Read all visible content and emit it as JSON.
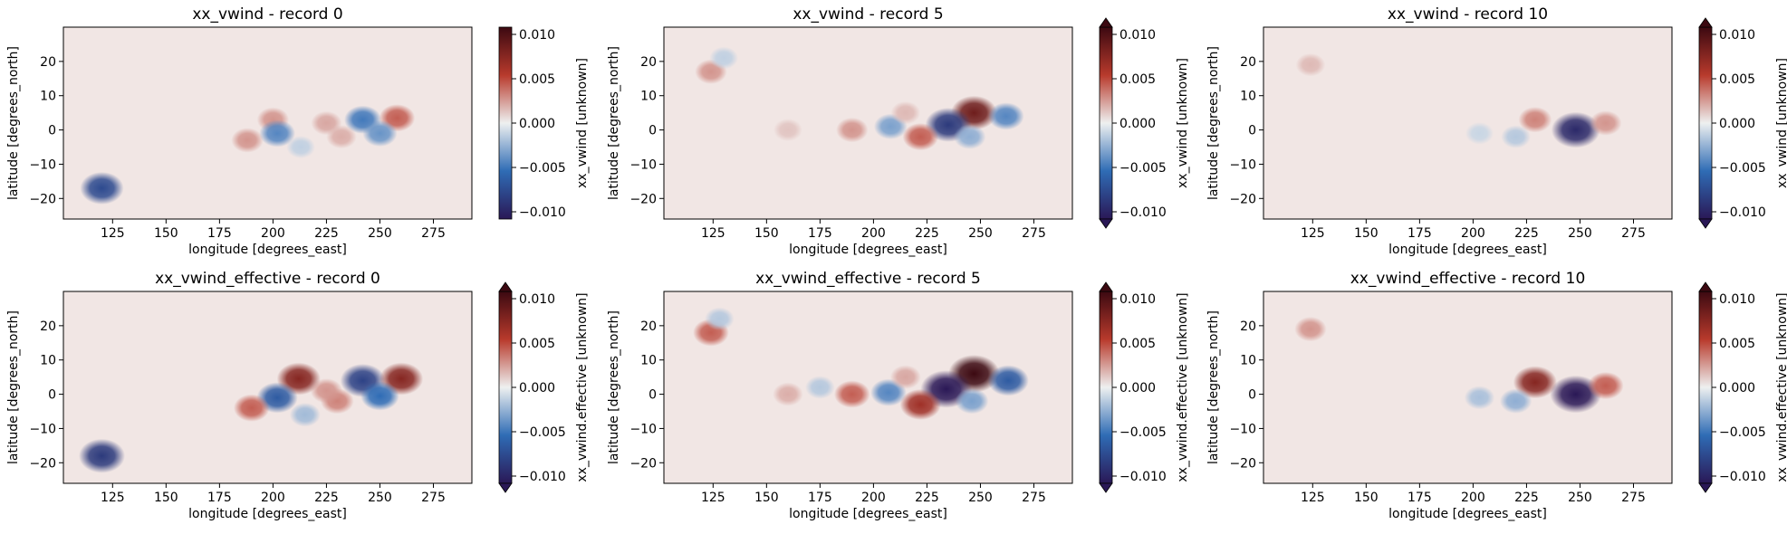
{
  "figure": {
    "layout": "2x3 grid of heatmap panels with colorbars"
  },
  "chart_data": [
    {
      "type": "heatmap",
      "title": "xx_vwind - record 0",
      "xlabel": "longitude [degrees_east]",
      "ylabel": "latitude [degrees_north]",
      "xlim": [
        102,
        293
      ],
      "ylim": [
        -26,
        30
      ],
      "xticks": [
        125,
        150,
        175,
        200,
        225,
        250,
        275
      ],
      "yticks": [
        -20,
        -10,
        0,
        10,
        20
      ],
      "colorbar": {
        "label": "xx_vwind [unknown]",
        "range": [
          -0.01,
          0.01
        ],
        "extend": "none",
        "ticks": [
          "0.010",
          "0.005",
          "0.000",
          "−0.005",
          "−0.010"
        ],
        "colors": [
          "#2a1856",
          "#2f6cb5",
          "#eef0f0",
          "#b83a2c",
          "#3c0911"
        ]
      },
      "features": [
        {
          "lon": 120,
          "lat": -17,
          "value": -0.007
        },
        {
          "lon": 200,
          "lat": 3,
          "value": 0.0025
        },
        {
          "lon": 188,
          "lat": -3,
          "value": 0.0025
        },
        {
          "lon": 202,
          "lat": -1,
          "value": -0.004
        },
        {
          "lon": 225,
          "lat": 2,
          "value": 0.002
        },
        {
          "lon": 242,
          "lat": 3,
          "value": -0.0045
        },
        {
          "lon": 258,
          "lat": 3.5,
          "value": 0.004
        },
        {
          "lon": 250,
          "lat": -1,
          "value": -0.0035
        },
        {
          "lon": 232,
          "lat": -2,
          "value": 0.0018
        },
        {
          "lon": 213,
          "lat": -5,
          "value": -0.0012
        }
      ]
    },
    {
      "type": "heatmap",
      "title": "xx_vwind - record 5",
      "xlabel": "longitude [degrees_east]",
      "ylabel": "latitude [degrees_north]",
      "xlim": [
        102,
        293
      ],
      "ylim": [
        -26,
        30
      ],
      "xticks": [
        125,
        150,
        175,
        200,
        225,
        250,
        275
      ],
      "yticks": [
        -20,
        -10,
        0,
        10,
        20
      ],
      "colorbar": {
        "label": "xx_vwind [unknown]",
        "range": [
          -0.01,
          0.01
        ],
        "extend": "both",
        "ticks": [
          "0.010",
          "0.005",
          "0.000",
          "−0.005",
          "−0.010"
        ],
        "colors": [
          "#2a1856",
          "#2f6cb5",
          "#eef0f0",
          "#b83a2c",
          "#3c0911"
        ]
      },
      "features": [
        {
          "lon": 124,
          "lat": 17,
          "value": 0.0025
        },
        {
          "lon": 130,
          "lat": 21,
          "value": -0.0012
        },
        {
          "lon": 247,
          "lat": 5,
          "value": 0.008
        },
        {
          "lon": 235,
          "lat": 1.5,
          "value": -0.008
        },
        {
          "lon": 262,
          "lat": 4,
          "value": -0.004
        },
        {
          "lon": 222,
          "lat": -2,
          "value": 0.004
        },
        {
          "lon": 208,
          "lat": 1,
          "value": -0.003
        },
        {
          "lon": 190,
          "lat": 0,
          "value": 0.0025
        },
        {
          "lon": 245,
          "lat": -2,
          "value": -0.0025
        },
        {
          "lon": 160,
          "lat": 0,
          "value": 0.0012
        },
        {
          "lon": 215,
          "lat": 5,
          "value": 0.0015
        }
      ]
    },
    {
      "type": "heatmap",
      "title": "xx_vwind - record 10",
      "xlabel": "longitude [degrees_east]",
      "ylabel": "latitude [degrees_north]",
      "xlim": [
        102,
        293
      ],
      "ylim": [
        -26,
        30
      ],
      "xticks": [
        125,
        150,
        175,
        200,
        225,
        250,
        275
      ],
      "yticks": [
        -20,
        -10,
        0,
        10,
        20
      ],
      "colorbar": {
        "label": "xx_vwind [unknown]",
        "range": [
          -0.01,
          0.01
        ],
        "extend": "both",
        "ticks": [
          "0.010",
          "0.005",
          "0.000",
          "−0.005",
          "−0.010"
        ],
        "colors": [
          "#2a1856",
          "#2f6cb5",
          "#eef0f0",
          "#b83a2c",
          "#3c0911"
        ]
      },
      "features": [
        {
          "lon": 124,
          "lat": 19,
          "value": 0.0015
        },
        {
          "lon": 229,
          "lat": 3,
          "value": 0.003
        },
        {
          "lon": 248,
          "lat": 0,
          "value": -0.009
        },
        {
          "lon": 262,
          "lat": 2,
          "value": 0.0025
        },
        {
          "lon": 220,
          "lat": -2,
          "value": -0.0015
        },
        {
          "lon": 203,
          "lat": -1,
          "value": -0.001
        }
      ]
    },
    {
      "type": "heatmap",
      "title": "xx_vwind_effective - record 0",
      "xlabel": "longitude [degrees_east]",
      "ylabel": "latitude [degrees_north]",
      "xlim": [
        102,
        293
      ],
      "ylim": [
        -26,
        30
      ],
      "xticks": [
        125,
        150,
        175,
        200,
        225,
        250,
        275
      ],
      "yticks": [
        -20,
        -10,
        0,
        10,
        20
      ],
      "colorbar": {
        "label": "xx_vwind.effective [unknown]",
        "range": [
          -0.01,
          0.01
        ],
        "extend": "both",
        "ticks": [
          "0.010",
          "0.005",
          "0.000",
          "−0.005",
          "−0.010"
        ],
        "colors": [
          "#2a1856",
          "#2f6cb5",
          "#eef0f0",
          "#b83a2c",
          "#3c0911"
        ]
      },
      "features": [
        {
          "lon": 120,
          "lat": -18,
          "value": -0.008
        },
        {
          "lon": 212,
          "lat": 4.5,
          "value": 0.007
        },
        {
          "lon": 202,
          "lat": -1,
          "value": -0.006
        },
        {
          "lon": 190,
          "lat": -4,
          "value": 0.004
        },
        {
          "lon": 242,
          "lat": 4,
          "value": -0.0075
        },
        {
          "lon": 260,
          "lat": 4.5,
          "value": 0.007
        },
        {
          "lon": 250,
          "lat": -0.5,
          "value": -0.005
        },
        {
          "lon": 230,
          "lat": -2,
          "value": 0.003
        },
        {
          "lon": 215,
          "lat": -6,
          "value": -0.002
        },
        {
          "lon": 225,
          "lat": 1,
          "value": 0.0025
        }
      ]
    },
    {
      "type": "heatmap",
      "title": "xx_vwind_effective - record 5",
      "xlabel": "longitude [degrees_east]",
      "ylabel": "latitude [degrees_north]",
      "xlim": [
        102,
        293
      ],
      "ylim": [
        -26,
        30
      ],
      "xticks": [
        125,
        150,
        175,
        200,
        225,
        250,
        275
      ],
      "yticks": [
        -20,
        -10,
        0,
        10,
        20
      ],
      "colorbar": {
        "label": "xx_vwind.effective [unknown]",
        "range": [
          -0.01,
          0.01
        ],
        "extend": "both",
        "ticks": [
          "0.010",
          "0.005",
          "0.000",
          "−0.005",
          "−0.010"
        ],
        "colors": [
          "#2a1856",
          "#2f6cb5",
          "#eef0f0",
          "#b83a2c",
          "#3c0911"
        ]
      },
      "features": [
        {
          "lon": 124,
          "lat": 18,
          "value": 0.004
        },
        {
          "lon": 128,
          "lat": 22,
          "value": -0.0015
        },
        {
          "lon": 247,
          "lat": 6,
          "value": 0.01
        },
        {
          "lon": 234,
          "lat": 1.5,
          "value": -0.01
        },
        {
          "lon": 263,
          "lat": 4,
          "value": -0.006
        },
        {
          "lon": 222,
          "lat": -3,
          "value": 0.006
        },
        {
          "lon": 207,
          "lat": 0.5,
          "value": -0.004
        },
        {
          "lon": 190,
          "lat": 0,
          "value": 0.004
        },
        {
          "lon": 246,
          "lat": -2,
          "value": -0.003
        },
        {
          "lon": 160,
          "lat": 0,
          "value": 0.0018
        },
        {
          "lon": 215,
          "lat": 5,
          "value": 0.002
        },
        {
          "lon": 175,
          "lat": 2,
          "value": -0.0015
        }
      ]
    },
    {
      "type": "heatmap",
      "title": "xx_vwind_effective - record 10",
      "xlabel": "longitude [degrees_east]",
      "ylabel": "latitude [degrees_north]",
      "xlim": [
        102,
        293
      ],
      "ylim": [
        -26,
        30
      ],
      "xticks": [
        125,
        150,
        175,
        200,
        225,
        250,
        275
      ],
      "yticks": [
        -20,
        -10,
        0,
        10,
        20
      ],
      "colorbar": {
        "label": "xx_vwind.effective [unknown]",
        "range": [
          -0.01,
          0.01
        ],
        "extend": "both",
        "ticks": [
          "0.010",
          "0.005",
          "0.000",
          "−0.005",
          "−0.010"
        ],
        "colors": [
          "#2a1856",
          "#2f6cb5",
          "#eef0f0",
          "#b83a2c",
          "#3c0911"
        ]
      },
      "features": [
        {
          "lon": 124,
          "lat": 19,
          "value": 0.0025
        },
        {
          "lon": 229,
          "lat": 3.5,
          "value": 0.007
        },
        {
          "lon": 248,
          "lat": 0,
          "value": -0.01
        },
        {
          "lon": 262,
          "lat": 2.5,
          "value": 0.004
        },
        {
          "lon": 220,
          "lat": -2,
          "value": -0.0025
        },
        {
          "lon": 203,
          "lat": -1,
          "value": -0.0018
        }
      ]
    }
  ]
}
